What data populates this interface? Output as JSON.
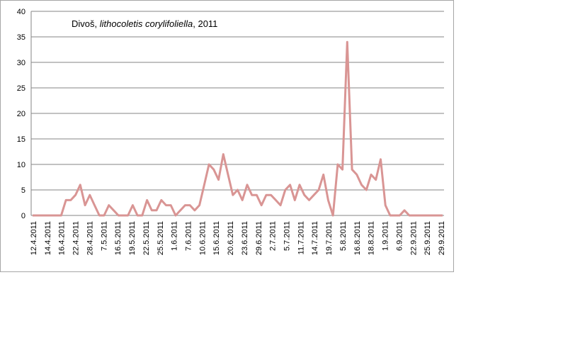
{
  "chart_data": {
    "type": "line",
    "title_parts": {
      "site": "Divoš, ",
      "species": "lithocoletis corylifoliella",
      "year": ", 2011"
    },
    "xlabel": "",
    "ylabel": "",
    "ylim": [
      0,
      40
    ],
    "yticks": [
      "0",
      "5",
      "10",
      "15",
      "20",
      "25",
      "30",
      "35",
      "40"
    ],
    "grid": true,
    "legend": "none",
    "x_tick_labels": [
      "12.4.2011",
      "14.4.2011",
      "16.4.2011",
      "22.4.2011",
      "28.4.2011",
      "7.5.2011",
      "16.5.2011",
      "19.5.2011",
      "22.5.2011",
      "25.5.2011",
      "1.6.2011",
      "7.6.2011",
      "10.6.2011",
      "15.6.2011",
      "20.6.2011",
      "23.6.2011",
      "29.6.2011",
      "2.7.2011",
      "5.7.2011",
      "11.7.2011",
      "14.7.2011",
      "19.7.2011",
      "5.8.2011",
      "16.8.2011",
      "18.8.2011",
      "1.9.2011",
      "6.9.2011",
      "22.9.2011",
      "25.9.2011",
      "29.9.2011"
    ],
    "series": [
      {
        "color": "#d99594",
        "values": [
          0,
          0,
          0,
          0,
          0,
          0,
          0,
          3,
          3,
          4,
          6,
          2,
          4,
          2,
          0,
          0,
          2,
          1,
          0,
          0,
          0,
          2,
          0,
          0,
          3,
          1,
          1,
          3,
          2,
          2,
          0,
          1,
          2,
          2,
          1,
          2,
          6,
          10,
          9,
          7,
          12,
          8,
          4,
          5,
          3,
          6,
          4,
          4,
          2,
          4,
          4,
          3,
          2,
          5,
          6,
          3,
          6,
          4,
          3,
          4,
          5,
          8,
          3,
          0,
          10,
          9,
          34,
          9,
          8,
          6,
          5,
          8,
          7,
          11,
          2,
          0,
          0,
          0,
          1,
          0,
          0,
          0,
          0,
          0,
          0,
          0,
          0
        ]
      }
    ]
  },
  "colors": {
    "grid": "#868686",
    "axis": "#868686",
    "frame": "#a6a6a6",
    "line": "#d99594"
  }
}
